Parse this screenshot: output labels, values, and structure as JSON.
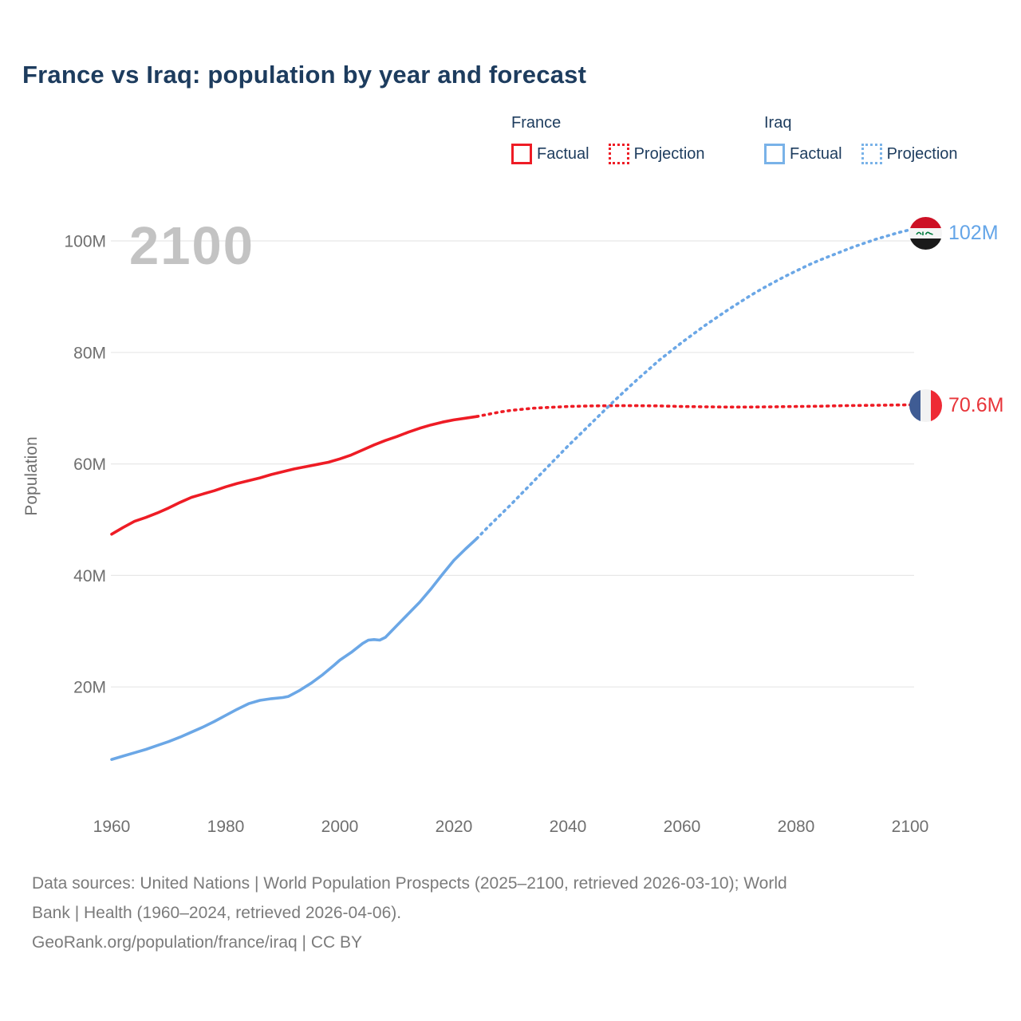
{
  "title": "France vs Iraq: population by year and forecast",
  "watermark": "2100",
  "legend": {
    "groups": [
      {
        "name": "France",
        "color": "#ee1c25",
        "items": [
          {
            "label": "Factual",
            "style": "solid"
          },
          {
            "label": "Projection",
            "style": "dotted"
          }
        ]
      },
      {
        "name": "Iraq",
        "color": "#79b2e8",
        "items": [
          {
            "label": "Factual",
            "style": "solid"
          },
          {
            "label": "Projection",
            "style": "dotted"
          }
        ]
      }
    ]
  },
  "end_labels": {
    "iraq": {
      "text": "102M",
      "color": "#64a5e8",
      "flag": "iraq-flag"
    },
    "france": {
      "text": "70.6M",
      "color": "#e8353a",
      "flag": "france-flag"
    }
  },
  "footer": {
    "sources_line1": "Data sources: United Nations | World Population Prospects (2025–2100, retrieved 2026-03-10); World",
    "sources_line2": "Bank | Health (1960–2024, retrieved 2026-04-06).",
    "attribution": "GeoRank.org/population/france/iraq | CC BY"
  },
  "chart_data": {
    "type": "line",
    "title": "France vs Iraq: population by year and forecast",
    "xlabel": "",
    "ylabel": "Population",
    "unit": "millions of people",
    "grid": "horizontal",
    "legend_position": "top-right",
    "xlim": [
      1960,
      2100
    ],
    "ylim": [
      0,
      105
    ],
    "x_ticks": [
      1960,
      1980,
      2000,
      2020,
      2040,
      2060,
      2080,
      2100
    ],
    "y_ticks": [
      {
        "value": 20,
        "label": "20M"
      },
      {
        "value": 40,
        "label": "40M"
      },
      {
        "value": 60,
        "label": "60M"
      },
      {
        "value": 80,
        "label": "80M"
      },
      {
        "value": 100,
        "label": "100M"
      }
    ],
    "series": [
      {
        "id": "france-factual",
        "name": "France Factual",
        "color": "#ee1c25",
        "style": "solid",
        "points": [
          [
            1960,
            47.4
          ],
          [
            1962,
            48.6
          ],
          [
            1964,
            49.7
          ],
          [
            1966,
            50.4
          ],
          [
            1968,
            51.2
          ],
          [
            1970,
            52.1
          ],
          [
            1972,
            53.1
          ],
          [
            1974,
            54.0
          ],
          [
            1976,
            54.6
          ],
          [
            1978,
            55.2
          ],
          [
            1980,
            55.9
          ],
          [
            1982,
            56.5
          ],
          [
            1984,
            57.0
          ],
          [
            1986,
            57.5
          ],
          [
            1988,
            58.1
          ],
          [
            1990,
            58.6
          ],
          [
            1992,
            59.1
          ],
          [
            1994,
            59.5
          ],
          [
            1996,
            59.9
          ],
          [
            1998,
            60.3
          ],
          [
            2000,
            60.9
          ],
          [
            2002,
            61.6
          ],
          [
            2004,
            62.5
          ],
          [
            2006,
            63.4
          ],
          [
            2008,
            64.2
          ],
          [
            2010,
            64.9
          ],
          [
            2012,
            65.7
          ],
          [
            2014,
            66.4
          ],
          [
            2016,
            67.0
          ],
          [
            2018,
            67.5
          ],
          [
            2020,
            67.9
          ],
          [
            2022,
            68.2
          ],
          [
            2024,
            68.5
          ]
        ]
      },
      {
        "id": "france-projection",
        "name": "France Projection",
        "color": "#ee1c25",
        "style": "dotted",
        "points": [
          [
            2024,
            68.5
          ],
          [
            2026,
            68.9
          ],
          [
            2028,
            69.3
          ],
          [
            2030,
            69.6
          ],
          [
            2032,
            69.8
          ],
          [
            2034,
            70.0
          ],
          [
            2036,
            70.1
          ],
          [
            2040,
            70.3
          ],
          [
            2044,
            70.4
          ],
          [
            2048,
            70.45
          ],
          [
            2052,
            70.45
          ],
          [
            2056,
            70.4
          ],
          [
            2060,
            70.3
          ],
          [
            2064,
            70.25
          ],
          [
            2068,
            70.2
          ],
          [
            2072,
            70.2
          ],
          [
            2076,
            70.25
          ],
          [
            2080,
            70.3
          ],
          [
            2084,
            70.35
          ],
          [
            2088,
            70.45
          ],
          [
            2092,
            70.5
          ],
          [
            2096,
            70.55
          ],
          [
            2100,
            70.6
          ]
        ]
      },
      {
        "id": "iraq-factual",
        "name": "Iraq Factual",
        "color": "#6ba7e6",
        "style": "solid",
        "points": [
          [
            1960,
            7.0
          ],
          [
            1962,
            7.6
          ],
          [
            1964,
            8.2
          ],
          [
            1966,
            8.8
          ],
          [
            1968,
            9.5
          ],
          [
            1970,
            10.2
          ],
          [
            1972,
            11.0
          ],
          [
            1974,
            11.9
          ],
          [
            1976,
            12.8
          ],
          [
            1978,
            13.8
          ],
          [
            1980,
            14.9
          ],
          [
            1982,
            16.0
          ],
          [
            1984,
            17.0
          ],
          [
            1986,
            17.6
          ],
          [
            1988,
            17.9
          ],
          [
            1990,
            18.1
          ],
          [
            1991,
            18.3
          ],
          [
            1993,
            19.4
          ],
          [
            1995,
            20.7
          ],
          [
            1997,
            22.2
          ],
          [
            1999,
            23.9
          ],
          [
            2000,
            24.8
          ],
          [
            2002,
            26.2
          ],
          [
            2004,
            27.8
          ],
          [
            2005,
            28.4
          ],
          [
            2006,
            28.5
          ],
          [
            2007,
            28.4
          ],
          [
            2008,
            28.9
          ],
          [
            2010,
            31.0
          ],
          [
            2012,
            33.1
          ],
          [
            2014,
            35.2
          ],
          [
            2016,
            37.6
          ],
          [
            2018,
            40.2
          ],
          [
            2020,
            42.7
          ],
          [
            2022,
            44.7
          ],
          [
            2024,
            46.6
          ]
        ]
      },
      {
        "id": "iraq-projection",
        "name": "Iraq Projection",
        "color": "#6ba7e6",
        "style": "dotted",
        "points": [
          [
            2024,
            46.6
          ],
          [
            2026,
            48.7
          ],
          [
            2028,
            50.7
          ],
          [
            2030,
            52.7
          ],
          [
            2032,
            54.8
          ],
          [
            2034,
            56.9
          ],
          [
            2036,
            59.0
          ],
          [
            2038,
            61.1
          ],
          [
            2040,
            63.2
          ],
          [
            2042,
            65.2
          ],
          [
            2044,
            67.2
          ],
          [
            2046,
            69.2
          ],
          [
            2048,
            71.2
          ],
          [
            2050,
            73.1
          ],
          [
            2052,
            75.0
          ],
          [
            2054,
            76.8
          ],
          [
            2056,
            78.6
          ],
          [
            2058,
            80.2
          ],
          [
            2060,
            81.8
          ],
          [
            2062,
            83.3
          ],
          [
            2064,
            84.8
          ],
          [
            2066,
            86.2
          ],
          [
            2068,
            87.6
          ],
          [
            2070,
            88.9
          ],
          [
            2072,
            90.2
          ],
          [
            2074,
            91.4
          ],
          [
            2076,
            92.5
          ],
          [
            2078,
            93.6
          ],
          [
            2080,
            94.6
          ],
          [
            2082,
            95.6
          ],
          [
            2084,
            96.5
          ],
          [
            2086,
            97.3
          ],
          [
            2088,
            98.1
          ],
          [
            2090,
            98.9
          ],
          [
            2092,
            99.6
          ],
          [
            2094,
            100.3
          ],
          [
            2096,
            100.9
          ],
          [
            2098,
            101.5
          ],
          [
            2100,
            102.0
          ]
        ]
      }
    ]
  }
}
